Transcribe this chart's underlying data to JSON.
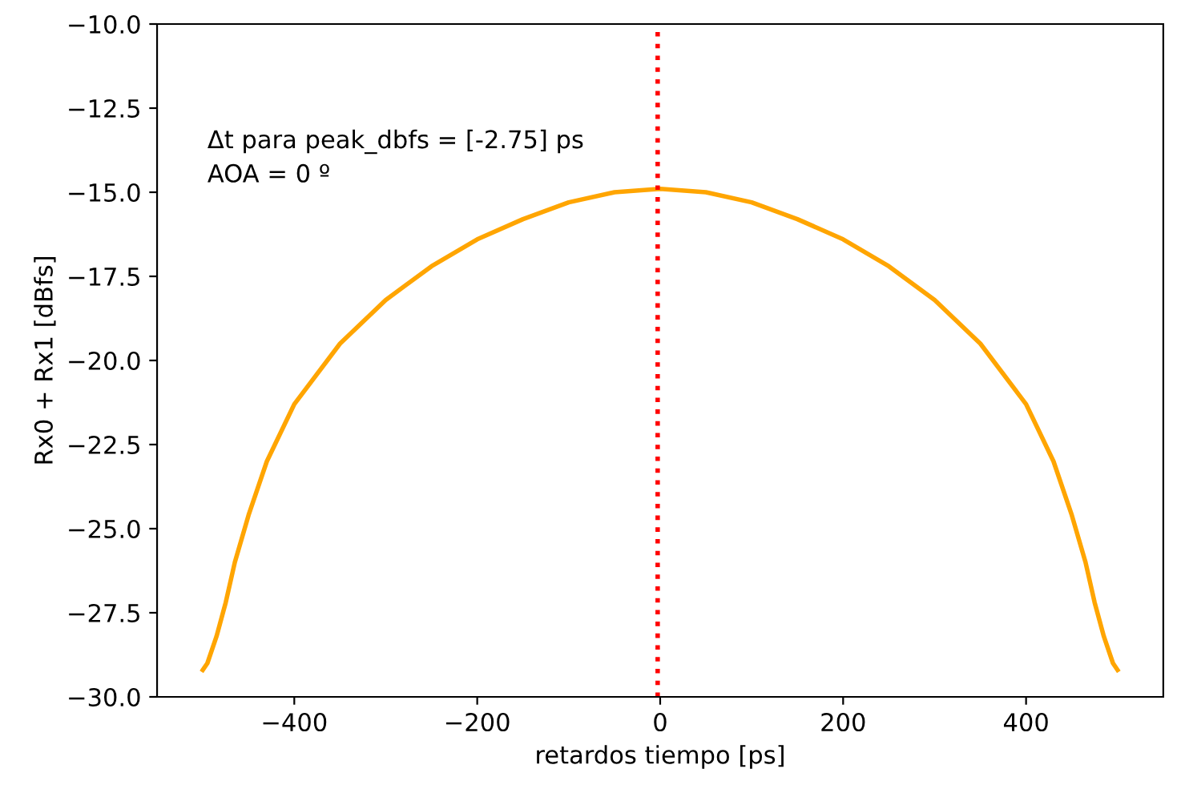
{
  "chart_data": {
    "type": "line",
    "xlabel": "retardos tiempo [ps]",
    "ylabel": "Rx0 + Rx1 [dBfs]",
    "annotations": [
      "Δt para peak_dbfs = [-2.75] ps",
      "AOA = 0 º"
    ],
    "x": [
      -500,
      -495,
      -485,
      -475,
      -465,
      -450,
      -430,
      -400,
      -350,
      -300,
      -250,
      -200,
      -150,
      -100,
      -50,
      0,
      50,
      100,
      150,
      200,
      250,
      300,
      350,
      400,
      430,
      450,
      465,
      475,
      485,
      495,
      500
    ],
    "series": [
      {
        "color": "#ffa500",
        "values": [
          -29.2,
          -29.0,
          -28.2,
          -27.2,
          -26.0,
          -24.6,
          -23.0,
          -21.3,
          -19.5,
          -18.2,
          -17.2,
          -16.4,
          -15.8,
          -15.3,
          -15.0,
          -14.9,
          -15.0,
          -15.3,
          -15.8,
          -16.4,
          -17.2,
          -18.2,
          -19.5,
          -21.3,
          -23.0,
          -24.6,
          -26.0,
          -27.2,
          -28.2,
          -29.0,
          -29.2
        ]
      }
    ],
    "ref_lines": [
      {
        "axis": "x",
        "value": -2.75,
        "color": "#ff0000",
        "line_style": "dotted"
      }
    ],
    "xlim": [
      -550,
      550
    ],
    "ylim": [
      -30,
      -10
    ],
    "xticks": [
      -400,
      -200,
      0,
      200,
      400
    ],
    "yticks": [
      {
        "value": -30,
        "label": "−30.0"
      },
      {
        "value": -27.5,
        "label": "−27.5"
      },
      {
        "value": -25,
        "label": "−25.0"
      },
      {
        "value": -22.5,
        "label": "−22.5"
      },
      {
        "value": -20,
        "label": "−20.0"
      },
      {
        "value": -17.5,
        "label": "−17.5"
      },
      {
        "value": -15,
        "label": "−15.0"
      },
      {
        "value": -12.5,
        "label": "−12.5"
      },
      {
        "value": -10,
        "label": "−10.0"
      }
    ],
    "grid": false,
    "legend": false
  }
}
